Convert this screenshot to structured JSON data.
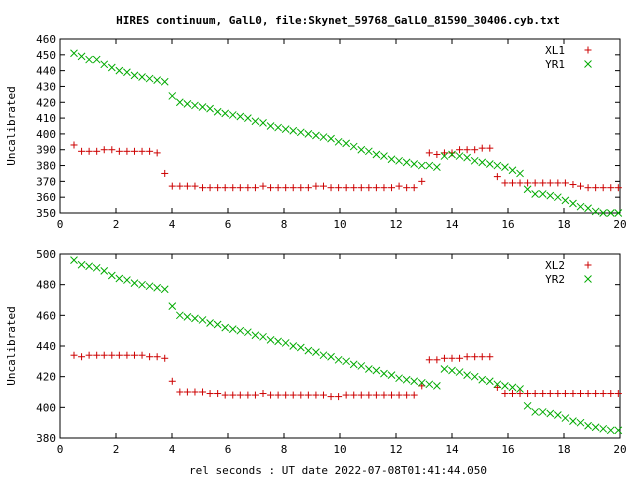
{
  "title": "HIRES continuum, GalL0, file:Skynet_59768_GalL0_81590_30406.cyb.txt",
  "xlabel": "rel seconds : UT date 2022-07-08T01:41:44.050",
  "colors": {
    "series1": "#cc0000",
    "series2": "#00aa00"
  },
  "chart_data": [
    {
      "type": "scatter",
      "ylabel": "Uncalibrated",
      "xlim": [
        0,
        20
      ],
      "ylim": [
        350,
        460
      ],
      "xticks": [
        0,
        2,
        4,
        6,
        8,
        10,
        12,
        14,
        16,
        18,
        20
      ],
      "yticks": [
        350,
        360,
        370,
        380,
        390,
        400,
        410,
        420,
        430,
        440,
        450,
        460
      ],
      "legend_position": "top-right",
      "grid": false,
      "x": [
        0.5,
        0.77,
        1.04,
        1.31,
        1.58,
        1.85,
        2.12,
        2.39,
        2.66,
        2.93,
        3.2,
        3.47,
        3.74,
        4.01,
        4.28,
        4.55,
        4.82,
        5.09,
        5.36,
        5.63,
        5.9,
        6.17,
        6.44,
        6.71,
        6.98,
        7.25,
        7.52,
        7.79,
        8.06,
        8.33,
        8.6,
        8.87,
        9.14,
        9.41,
        9.68,
        9.95,
        10.22,
        10.49,
        10.76,
        11.03,
        11.3,
        11.57,
        11.84,
        12.11,
        12.38,
        12.65,
        12.92,
        13.19,
        13.46,
        13.73,
        14.0,
        14.27,
        14.54,
        14.81,
        15.08,
        15.35,
        15.62,
        15.89,
        16.16,
        16.43,
        16.7,
        16.97,
        17.24,
        17.51,
        17.78,
        18.05,
        18.32,
        18.59,
        18.86,
        19.13,
        19.4,
        19.67,
        19.94
      ],
      "series": [
        {
          "name": "XL1",
          "marker": "plus",
          "values": [
            393,
            389,
            389,
            389,
            390,
            390,
            389,
            389,
            389,
            389,
            389,
            388,
            375,
            367,
            367,
            367,
            367,
            366,
            366,
            366,
            366,
            366,
            366,
            366,
            366,
            367,
            366,
            366,
            366,
            366,
            366,
            366,
            367,
            367,
            366,
            366,
            366,
            366,
            366,
            366,
            366,
            366,
            366,
            367,
            366,
            366,
            370,
            388,
            387,
            388,
            388,
            390,
            390,
            390,
            391,
            391,
            373,
            369,
            369,
            369,
            369,
            369,
            369,
            369,
            369,
            369,
            368,
            367,
            366,
            366,
            366,
            366,
            366
          ]
        },
        {
          "name": "YR1",
          "marker": "cross",
          "values": [
            451,
            449,
            447,
            447,
            444,
            442,
            440,
            439,
            437,
            436,
            435,
            434,
            433,
            424,
            420,
            419,
            418,
            417,
            416,
            414,
            413,
            412,
            411,
            410,
            408,
            407,
            405,
            404,
            403,
            402,
            401,
            400,
            399,
            398,
            397,
            395,
            394,
            392,
            390,
            389,
            387,
            386,
            384,
            383,
            382,
            381,
            380,
            380,
            379,
            386,
            387,
            386,
            385,
            383,
            382,
            381,
            380,
            379,
            377,
            375,
            365,
            362,
            362,
            361,
            360,
            358,
            356,
            354,
            353,
            351,
            350,
            350,
            350
          ]
        }
      ]
    },
    {
      "type": "scatter",
      "ylabel": "Uncalibrated",
      "xlim": [
        0,
        20
      ],
      "ylim": [
        380,
        500
      ],
      "xticks": [
        0,
        2,
        4,
        6,
        8,
        10,
        12,
        14,
        16,
        18,
        20
      ],
      "yticks": [
        380,
        400,
        420,
        440,
        460,
        480,
        500
      ],
      "legend_position": "top-right",
      "grid": false,
      "x": [
        0.5,
        0.77,
        1.04,
        1.31,
        1.58,
        1.85,
        2.12,
        2.39,
        2.66,
        2.93,
        3.2,
        3.47,
        3.74,
        4.01,
        4.28,
        4.55,
        4.82,
        5.09,
        5.36,
        5.63,
        5.9,
        6.17,
        6.44,
        6.71,
        6.98,
        7.25,
        7.52,
        7.79,
        8.06,
        8.33,
        8.6,
        8.87,
        9.14,
        9.41,
        9.68,
        9.95,
        10.22,
        10.49,
        10.76,
        11.03,
        11.3,
        11.57,
        11.84,
        12.11,
        12.38,
        12.65,
        12.92,
        13.19,
        13.46,
        13.73,
        14.0,
        14.27,
        14.54,
        14.81,
        15.08,
        15.35,
        15.62,
        15.89,
        16.16,
        16.43,
        16.7,
        16.97,
        17.24,
        17.51,
        17.78,
        18.05,
        18.32,
        18.59,
        18.86,
        19.13,
        19.4,
        19.67,
        19.94
      ],
      "series": [
        {
          "name": "XL2",
          "marker": "plus",
          "values": [
            434,
            433,
            434,
            434,
            434,
            434,
            434,
            434,
            434,
            434,
            433,
            433,
            432,
            417,
            410,
            410,
            410,
            410,
            409,
            409,
            408,
            408,
            408,
            408,
            408,
            409,
            408,
            408,
            408,
            408,
            408,
            408,
            408,
            408,
            407,
            407,
            408,
            408,
            408,
            408,
            408,
            408,
            408,
            408,
            408,
            408,
            414,
            431,
            431,
            432,
            432,
            432,
            433,
            433,
            433,
            433,
            413,
            409,
            409,
            409,
            409,
            409,
            409,
            409,
            409,
            409,
            409,
            409,
            409,
            409,
            409,
            409,
            409
          ]
        },
        {
          "name": "YR2",
          "marker": "cross",
          "values": [
            496,
            493,
            492,
            491,
            489,
            486,
            484,
            483,
            481,
            480,
            479,
            478,
            477,
            466,
            460,
            459,
            458,
            457,
            455,
            454,
            452,
            451,
            450,
            449,
            447,
            446,
            444,
            443,
            442,
            440,
            439,
            437,
            436,
            434,
            433,
            431,
            430,
            428,
            427,
            425,
            424,
            422,
            421,
            419,
            418,
            417,
            416,
            415,
            414,
            425,
            424,
            423,
            421,
            420,
            418,
            417,
            415,
            414,
            413,
            412,
            401,
            397,
            397,
            396,
            395,
            393,
            391,
            390,
            388,
            387,
            386,
            385,
            385
          ]
        }
      ]
    }
  ]
}
